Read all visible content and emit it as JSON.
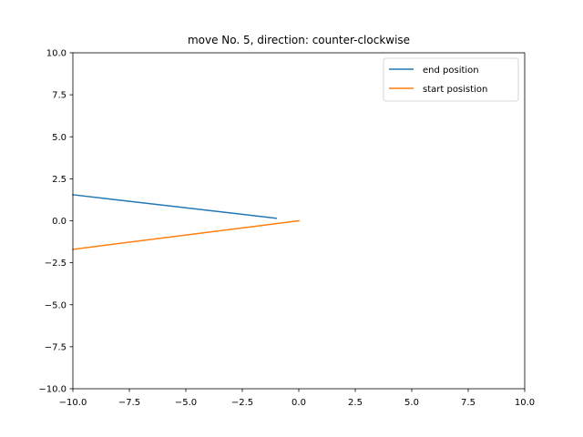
{
  "chart_data": {
    "type": "line",
    "title": "move No. 5, direction: counter-clockwise",
    "xlabel": "",
    "ylabel": "",
    "xlim": [
      -10,
      10
    ],
    "ylim": [
      -10,
      10
    ],
    "xticks": [
      -10.0,
      -7.5,
      -5.0,
      -2.5,
      0.0,
      2.5,
      5.0,
      7.5,
      10.0
    ],
    "yticks": [
      -10.0,
      -7.5,
      -5.0,
      -2.5,
      0.0,
      2.5,
      5.0,
      7.5,
      10.0
    ],
    "xtick_labels": [
      "−10.0",
      "−7.5",
      "−5.0",
      "−2.5",
      "0.0",
      "2.5",
      "5.0",
      "7.5",
      "10.0"
    ],
    "ytick_labels": [
      "−10.0",
      "−7.5",
      "−5.0",
      "−2.5",
      "0.0",
      "2.5",
      "5.0",
      "7.5",
      "10.0"
    ],
    "grid": false,
    "legend_position": "top-right",
    "series": [
      {
        "name": "end position",
        "color": "#1f77b4",
        "x": [
          -1.0,
          -10.0
        ],
        "y": [
          0.15,
          1.55
        ]
      },
      {
        "name": "start posistion",
        "color": "#ff7f0e",
        "x": [
          0.0,
          -10.0
        ],
        "y": [
          0.0,
          -1.7
        ]
      }
    ]
  }
}
